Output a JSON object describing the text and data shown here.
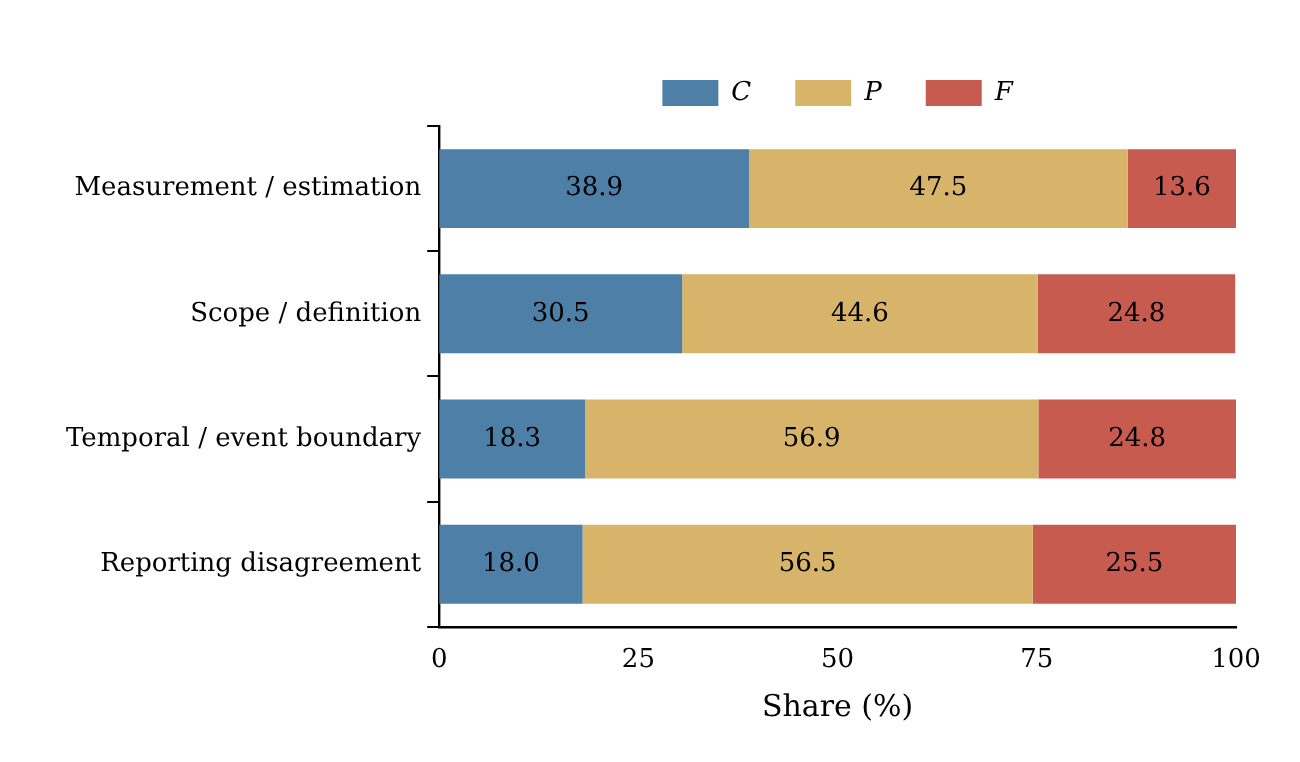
{
  "chart_data": {
    "type": "bar",
    "orientation": "horizontal",
    "stacked": true,
    "xlabel": "Share (%)",
    "categories": [
      "Measurement / estimation",
      "Scope / definition",
      "Temporal / event boundary",
      "Reporting disagreement"
    ],
    "series": [
      {
        "name": "C",
        "color": "#4e7fa6",
        "values": [
          38.9,
          30.5,
          18.3,
          18.0
        ],
        "value_labels": [
          "38.9",
          "30.5",
          "18.3",
          "18.0"
        ]
      },
      {
        "name": "P",
        "color": "#d8b46b",
        "values": [
          47.5,
          44.6,
          56.9,
          56.5
        ],
        "value_labels": [
          "47.5",
          "44.6",
          "56.9",
          "56.5"
        ]
      },
      {
        "name": "F",
        "color": "#c75b50",
        "values": [
          13.6,
          24.8,
          24.8,
          25.5
        ],
        "value_labels": [
          "13.6",
          "24.8",
          "24.8",
          "25.5"
        ]
      }
    ],
    "xlim": [
      0,
      100
    ],
    "xticks": [
      0,
      25,
      50,
      75,
      100
    ],
    "grid": false,
    "legend": "top"
  }
}
